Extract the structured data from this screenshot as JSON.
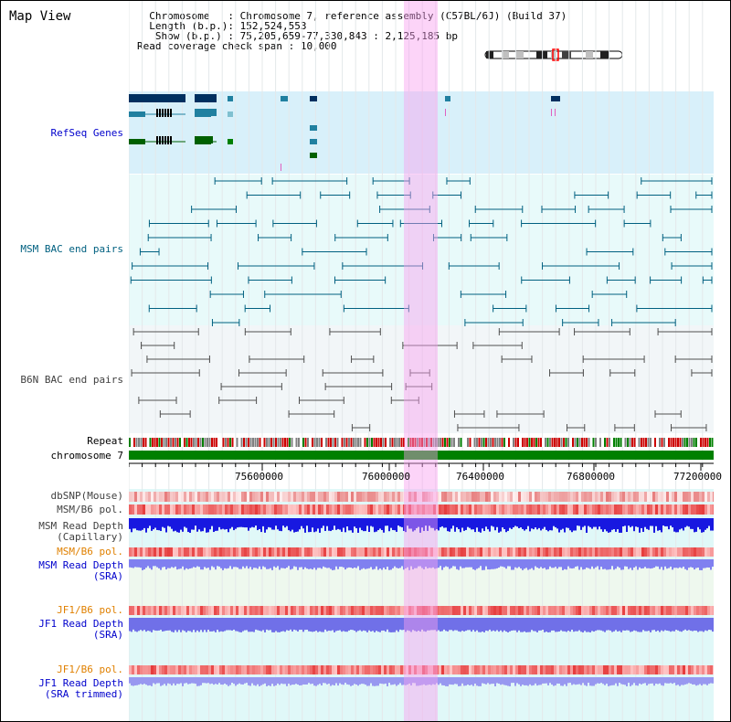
{
  "header": {
    "title": "Map View",
    "info": [
      {
        "label": "  Chromosome   ",
        "value": ": Chromosome 7, reference assembly (C57BL/6J) (Build 37)"
      },
      {
        "label": "  Length (b.p.)",
        "value": ": 152,524,553"
      },
      {
        "label": "   Show (b.p.) ",
        "value": ": 75,205,659-77,330,843 : 2,125,185 bp"
      },
      {
        "label": "Read coverage check span",
        "value": " : 10,000"
      }
    ]
  },
  "tracks": {
    "refseq": {
      "label": "RefSeq Genes",
      "color": "#0000cc"
    },
    "msm_bac": {
      "label": "MSM BAC end pairs",
      "color": "#006080"
    },
    "b6n_bac": {
      "label": "B6N BAC end pairs",
      "color": "#404040"
    },
    "repeat": {
      "label": "Repeat"
    },
    "chromosome": {
      "label": "chromosome 7"
    },
    "dbsnp": {
      "label": "dbSNP(Mouse)"
    },
    "msm_b6_pol": {
      "label": "MSM/B6 pol."
    },
    "msm_read_cap": {
      "label1": "MSM Read Depth",
      "label2": "(Capillary)"
    },
    "msm_b6_pol2": {
      "label": "MSM/B6 pol.",
      "color": "#e08000"
    },
    "msm_read_sra": {
      "label1": "MSM Read Depth",
      "label2": "(SRA)"
    },
    "jf1_b6_pol": {
      "label": "JF1/B6 pol.",
      "color": "#e08000"
    },
    "jf1_read_sra": {
      "label1": "JF1 Read Depth",
      "label2": "(SRA)"
    },
    "jf1_b6_pol2": {
      "label": "JF1/B6 pol.",
      "color": "#e08000"
    },
    "jf1_read_trim": {
      "label1": "JF1 Read Depth",
      "label2": "(SRA trimmed)"
    }
  },
  "axis": {
    "ticks": [
      "75600000",
      "76000000",
      "76400000",
      "76800000",
      "77200000"
    ]
  },
  "colors": {
    "refseq_bg": "#d8f0fa",
    "bac_bg": "#e8fafa",
    "b6n_bg": "#f2f6f8",
    "depth_bg": "#e0f8f8",
    "highlight": "#f8a0f0",
    "chrom_green": "#008000"
  }
}
